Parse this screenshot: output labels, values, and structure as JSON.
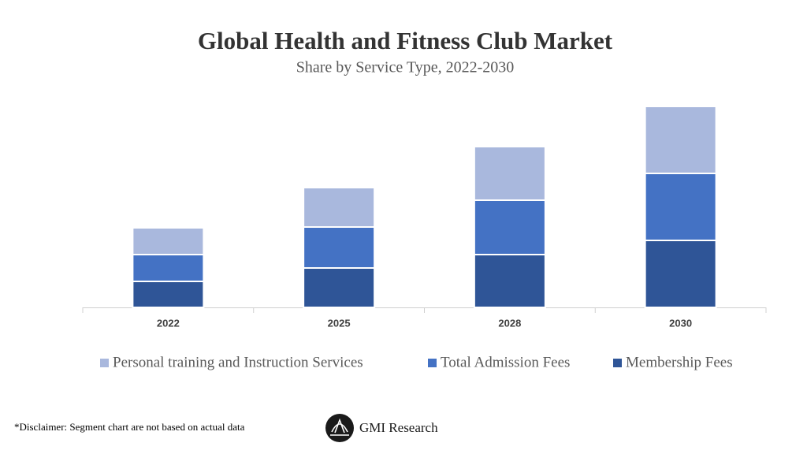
{
  "chart_data": {
    "type": "stacked-bar",
    "title": "Global Health and Fitness Club Market",
    "subtitle": "Share by Service Type, 2022-2030",
    "categories": [
      "2022",
      "2025",
      "2028",
      "2030"
    ],
    "series": [
      {
        "name": "Personal training and Instruction Services",
        "color": "#a9b8dd",
        "values": [
          34,
          50,
          68,
          85
        ]
      },
      {
        "name": "Total Admission Fees",
        "color": "#4472c4",
        "values": [
          34,
          52,
          69,
          85
        ]
      },
      {
        "name": "Membership Fees",
        "color": "#2f5597",
        "values": [
          33,
          50,
          67,
          85
        ]
      }
    ]
  },
  "footer": {
    "disclaimer": "*Disclaimer:  Segment chart are not based on actual data",
    "brand": "GMI Research"
  }
}
